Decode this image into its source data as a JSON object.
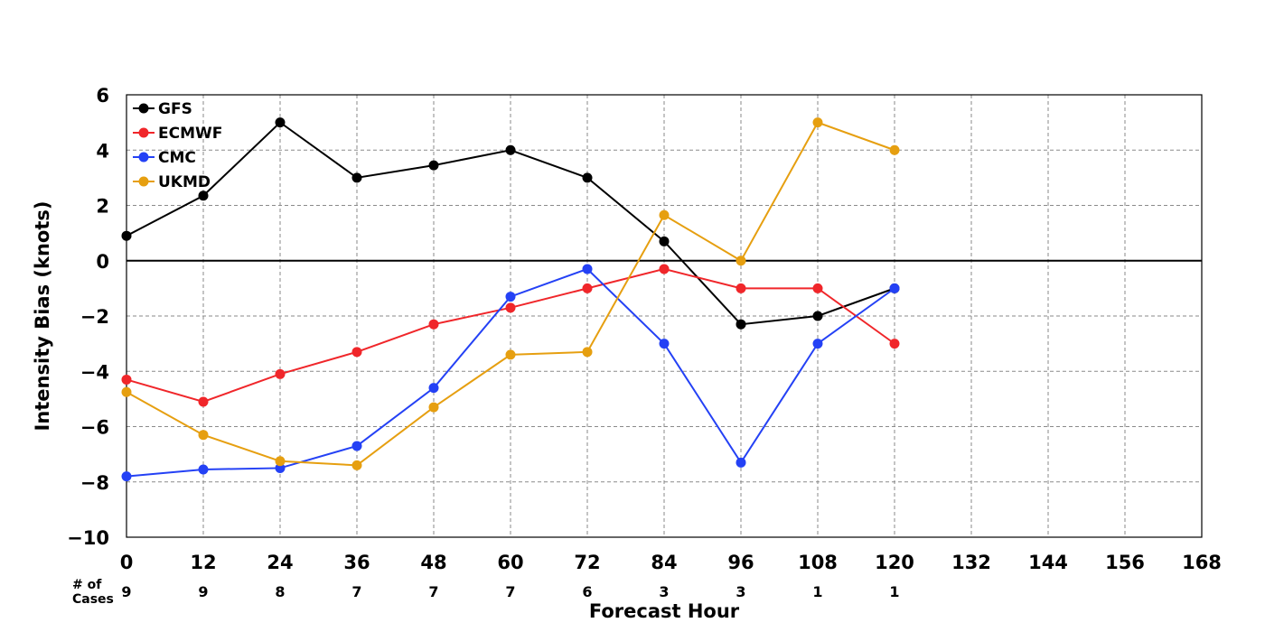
{
  "chart_data": {
    "type": "line",
    "title": "",
    "xlabel": "Forecast Hour",
    "ylabel": "Intensity Bias (knots)",
    "xlim": [
      0,
      168
    ],
    "ylim": [
      -10,
      6
    ],
    "x_ticks": [
      0,
      12,
      24,
      36,
      48,
      60,
      72,
      84,
      96,
      108,
      120,
      132,
      144,
      156,
      168
    ],
    "y_ticks": [
      6,
      4,
      2,
      0,
      -2,
      -4,
      -6,
      -8,
      -10
    ],
    "grid": true,
    "legend_position": "top-left",
    "x": [
      0,
      12,
      24,
      36,
      48,
      60,
      72,
      84,
      96,
      108,
      120
    ],
    "series": [
      {
        "name": "GFS",
        "color": "#000000",
        "values": [
          0.9,
          2.35,
          5.0,
          3.0,
          3.45,
          4.0,
          3.0,
          0.7,
          -2.3,
          -2.0,
          -1.0
        ]
      },
      {
        "name": "ECMWF",
        "color": "#f0262a",
        "values": [
          -4.3,
          -5.1,
          -4.1,
          -3.3,
          -2.3,
          -1.7,
          -1.0,
          -0.3,
          -1.0,
          -1.0,
          -3.0
        ]
      },
      {
        "name": "CMC",
        "color": "#2441f5",
        "values": [
          -7.8,
          -7.55,
          -7.5,
          -6.7,
          -4.6,
          -1.3,
          -0.3,
          -3.0,
          -7.3,
          -3.0,
          -1.0
        ]
      },
      {
        "name": "UKMD",
        "color": "#e69f10",
        "values": [
          -4.75,
          -6.3,
          -7.25,
          -7.4,
          -5.3,
          -3.4,
          -3.3,
          1.65,
          0.0,
          5.0,
          4.0
        ]
      }
    ],
    "cases": {
      "label_line1": "# of",
      "label_line2": "Cases",
      "values": [
        "9",
        "9",
        "8",
        "7",
        "7",
        "7",
        "6",
        "3",
        "3",
        "1",
        "1"
      ]
    }
  }
}
